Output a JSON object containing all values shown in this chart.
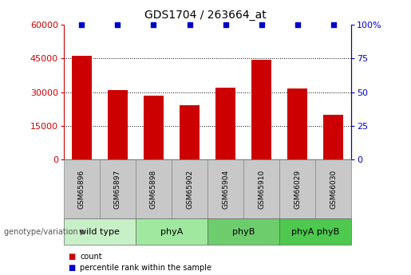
{
  "title": "GDS1704 / 263664_at",
  "samples": [
    "GSM65896",
    "GSM65897",
    "GSM65898",
    "GSM65902",
    "GSM65904",
    "GSM65910",
    "GSM66029",
    "GSM66030"
  ],
  "counts": [
    46000,
    31000,
    28500,
    24000,
    32000,
    44500,
    31500,
    20000
  ],
  "percentile_ranks": [
    100,
    100,
    100,
    100,
    100,
    100,
    100,
    100
  ],
  "bar_color": "#cc0000",
  "dot_color": "#0000cc",
  "left_ylim": [
    0,
    60000
  ],
  "right_ylim": [
    0,
    100
  ],
  "left_yticks": [
    0,
    15000,
    30000,
    45000,
    60000
  ],
  "right_yticks": [
    0,
    25,
    50,
    75,
    100
  ],
  "right_yticklabels": [
    "0",
    "25",
    "50",
    "75",
    "100%"
  ],
  "groups": [
    {
      "label": "wild type",
      "indices": [
        0,
        1
      ],
      "color": "#c8f0c8"
    },
    {
      "label": "phyA",
      "indices": [
        2,
        3
      ],
      "color": "#a0e8a0"
    },
    {
      "label": "phyB",
      "indices": [
        4,
        5
      ],
      "color": "#6dcd6d"
    },
    {
      "label": "phyA phyB",
      "indices": [
        6,
        7
      ],
      "color": "#4ec84e"
    }
  ],
  "group_label": "genotype/variation",
  "legend_items": [
    {
      "label": "count",
      "color": "#cc0000"
    },
    {
      "label": "percentile rank within the sample",
      "color": "#0000cc"
    }
  ],
  "tick_label_color_left": "#cc0000",
  "tick_label_color_right": "#0000cc",
  "sample_box_color": "#c8c8c8",
  "grid_color": "black",
  "grid_linestyle": ":"
}
